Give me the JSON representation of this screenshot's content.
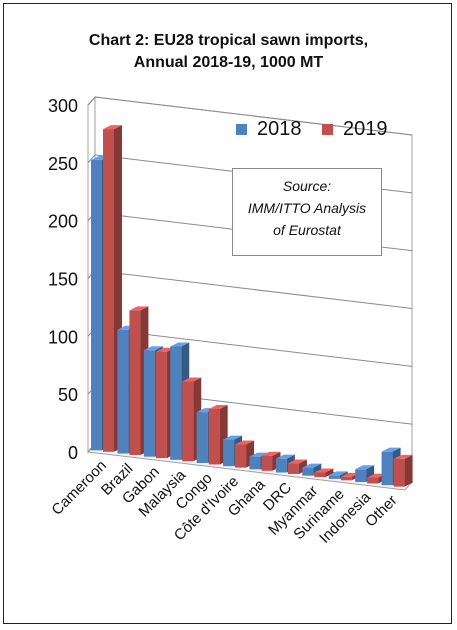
{
  "chart_data": {
    "type": "bar",
    "title_line1": "Chart 2: EU28 tropical sawn imports,",
    "title_line2": "Annual  2018-19, 1000 MT",
    "categories": [
      "Cameroon",
      "Brazil",
      "Gabon",
      "Malaysia",
      "Congo",
      "Côte d'Ivoire",
      "Ghana",
      "DRC",
      "Myanmar",
      "Suriname",
      "Indonesia",
      "Other"
    ],
    "series": [
      {
        "name": "2018",
        "color": "#4f81bd",
        "values": [
          251,
          107,
          92,
          98,
          44,
          23,
          11,
          12,
          7,
          3,
          11,
          29
        ]
      },
      {
        "name": "2019",
        "color": "#c0504d",
        "values": [
          279,
          125,
          92,
          69,
          48,
          20,
          13,
          9,
          4,
          3,
          5,
          24
        ]
      }
    ],
    "ylim": [
      0,
      300
    ],
    "yticks": [
      0,
      50,
      100,
      150,
      200,
      250,
      300
    ],
    "grid": true,
    "legend_position": "top-right"
  },
  "source_lines": [
    "Source:",
    "IMM/ITTO Analysis",
    "of Eurostat"
  ]
}
